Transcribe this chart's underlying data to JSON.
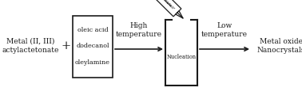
{
  "bg_color": "#ffffff",
  "text_color": "#1a1a1a",
  "label_metal": "Metal (II, III)\nactylactetonate",
  "label_plus": "+",
  "label_box1_line1": "oleic acid",
  "label_box1_line2": "dodecanol",
  "label_box1_line3": "oleylamine",
  "label_high_temp": "High\ntemperature",
  "label_nucleation": "Nucleation",
  "label_low_temp": "Low\ntemperature",
  "label_product": "Metal oxide\nNanocrystals",
  "font_size": 6.5,
  "font_size_box": 5.8,
  "font_size_nuc": 4.8
}
